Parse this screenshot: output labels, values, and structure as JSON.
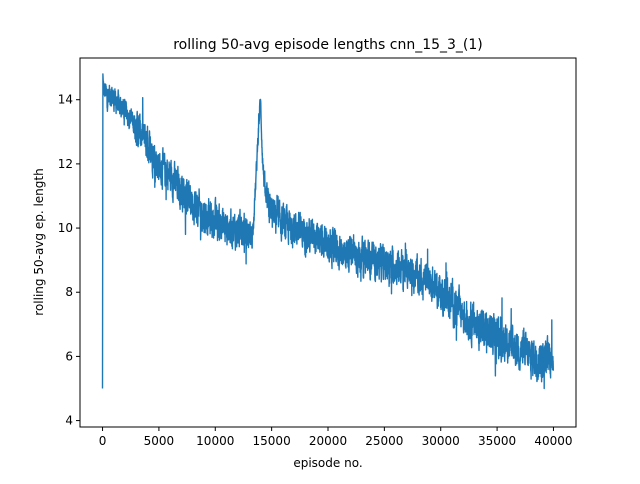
{
  "chart_data": {
    "type": "line",
    "title": "rolling 50-avg episode lengths cnn_15_3_(1)",
    "xlabel": "episode no.",
    "ylabel": "rolling 50-avg ep. length",
    "xlim": [
      -2000,
      42000
    ],
    "ylim": [
      3.8,
      15.3
    ],
    "xticks": [
      0,
      5000,
      10000,
      15000,
      20000,
      25000,
      30000,
      35000,
      40000
    ],
    "yticks": [
      4,
      6,
      8,
      10,
      12,
      14
    ],
    "grid": false,
    "legend": "none",
    "line_color": "#1f77b4",
    "series": [
      {
        "x": [
          0,
          30,
          60,
          100,
          200,
          400,
          700,
          1000,
          1500,
          2000,
          2500,
          3000,
          3500,
          4000,
          4500,
          5000,
          5500,
          6000,
          6500,
          7000,
          7500,
          8000,
          8500,
          9000,
          9500,
          10000,
          10500,
          11000,
          11500,
          12000,
          12500,
          13000,
          13300,
          13600,
          13800,
          14000,
          14200,
          14500,
          15000,
          15500,
          16000,
          17000,
          18000,
          19000,
          20000,
          21000,
          22000,
          23000,
          24000,
          25000,
          26000,
          27000,
          28000,
          29000,
          30000,
          31000,
          32000,
          33000,
          34000,
          35000,
          36000,
          37000,
          38000,
          39000,
          40000
        ],
        "y": [
          5.0,
          14.8,
          14.5,
          14.2,
          14.3,
          14.1,
          14.2,
          14.0,
          13.8,
          13.7,
          13.4,
          13.1,
          12.9,
          12.6,
          12.3,
          12.0,
          11.8,
          11.6,
          11.4,
          11.2,
          11.0,
          10.8,
          10.6,
          10.4,
          10.3,
          10.2,
          10.1,
          10.0,
          10.0,
          9.9,
          9.9,
          9.8,
          9.8,
          11.5,
          13.0,
          14.0,
          12.0,
          10.8,
          10.5,
          10.3,
          10.1,
          10.0,
          9.8,
          9.6,
          9.4,
          9.3,
          9.2,
          9.1,
          9.0,
          8.9,
          8.8,
          8.7,
          8.5,
          8.3,
          8.0,
          7.7,
          7.3,
          7.0,
          6.8,
          6.6,
          6.4,
          6.2,
          6.0,
          5.9,
          6.0
        ]
      }
    ]
  }
}
